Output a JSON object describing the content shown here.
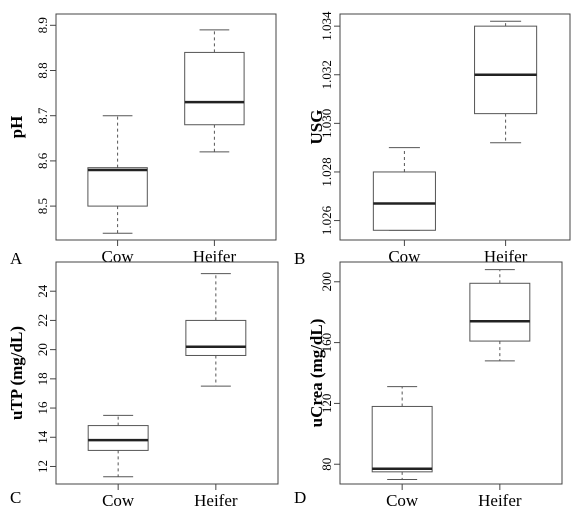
{
  "figure": {
    "panel_labels": [
      "A",
      "B",
      "C",
      "D"
    ]
  },
  "chart_data": [
    {
      "type": "boxplot",
      "panel": "A",
      "ylabel": "pH",
      "categories": [
        "Cow",
        "Heifer"
      ],
      "ylim": [
        8.425,
        8.925
      ],
      "yticks": [
        8.5,
        8.6,
        8.7,
        8.8,
        8.9
      ],
      "ytick_labels": [
        "8.5",
        "8.6",
        "8.7",
        "8.8",
        "8.9"
      ],
      "boxes": [
        {
          "min": 8.44,
          "q1": 8.5,
          "median": 8.58,
          "q3": 8.585,
          "max": 8.7
        },
        {
          "min": 8.62,
          "q1": 8.68,
          "median": 8.73,
          "q3": 8.84,
          "max": 8.89
        }
      ]
    },
    {
      "type": "boxplot",
      "panel": "B",
      "ylabel": "USG",
      "categories": [
        "Cow",
        "Heifer"
      ],
      "ylim": [
        1.0252,
        1.0345
      ],
      "yticks": [
        1.026,
        1.028,
        1.03,
        1.032,
        1.034
      ],
      "ytick_labels": [
        "1.026",
        "1.028",
        "1.030",
        "1.032",
        "1.034"
      ],
      "boxes": [
        {
          "min": 1.0256,
          "q1": 1.0256,
          "median": 1.0267,
          "q3": 1.028,
          "max": 1.029
        },
        {
          "min": 1.0292,
          "q1": 1.0304,
          "median": 1.032,
          "q3": 1.034,
          "max": 1.0342
        }
      ]
    },
    {
      "type": "boxplot",
      "panel": "C",
      "ylabel": "uTP (mg/dL)",
      "categories": [
        "Cow",
        "Heifer"
      ],
      "ylim": [
        10.8,
        26.0
      ],
      "yticks": [
        12,
        14,
        16,
        18,
        20,
        22,
        24
      ],
      "ytick_labels": [
        "12",
        "14",
        "16",
        "18",
        "20",
        "22",
        "24"
      ],
      "boxes": [
        {
          "min": 11.3,
          "q1": 13.1,
          "median": 13.8,
          "q3": 14.8,
          "max": 15.5
        },
        {
          "min": 17.5,
          "q1": 19.6,
          "median": 20.2,
          "q3": 22.0,
          "max": 25.2
        }
      ]
    },
    {
      "type": "boxplot",
      "panel": "D",
      "ylabel": "uCrea (mg/dL)",
      "categories": [
        "Cow",
        "Heifer"
      ],
      "ylim": [
        67,
        213
      ],
      "yticks": [
        80,
        120,
        160,
        200
      ],
      "ytick_labels": [
        "80",
        "120",
        "160",
        "200"
      ],
      "boxes": [
        {
          "min": 70,
          "q1": 75,
          "median": 77,
          "q3": 118,
          "max": 131
        },
        {
          "min": 148,
          "q1": 161,
          "median": 174,
          "q3": 199,
          "max": 208
        }
      ]
    }
  ]
}
